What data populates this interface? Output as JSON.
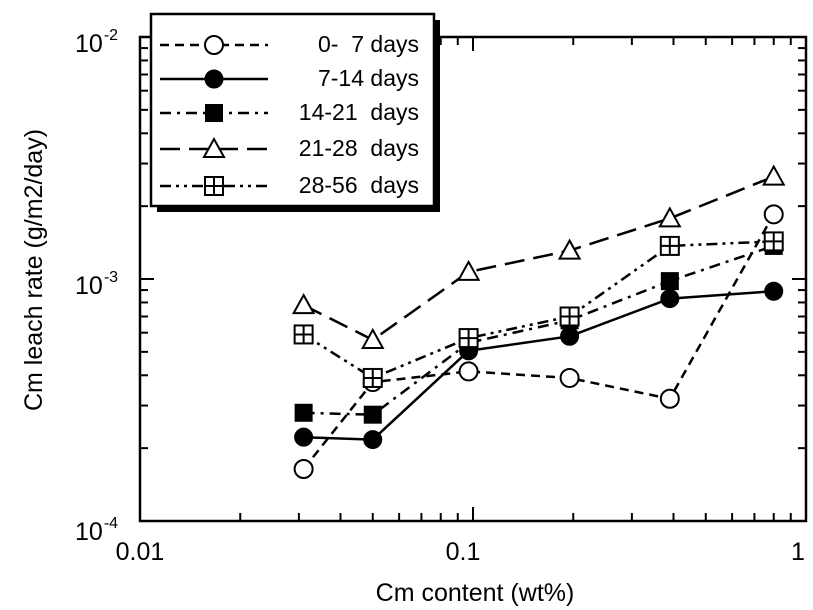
{
  "chart_data": {
    "type": "line",
    "xlabel": "Cm content (wt%)",
    "ylabel": "Cm leach rate (g/m2/day)",
    "xscale": "log",
    "yscale": "log",
    "xlim": [
      0.01,
      1
    ],
    "ylim": [
      0.0001,
      0.01
    ],
    "x_tick_labels": [
      "0.01",
      "0.1",
      "1"
    ],
    "y_tick_labels": [
      {
        "base": "10",
        "exp": "-4"
      },
      {
        "base": "10",
        "exp": "-3"
      },
      {
        "base": "10",
        "exp": "-2"
      }
    ],
    "legend_position": "top-left",
    "grid": false,
    "series": [
      {
        "name": "0-  7 days",
        "marker": "open-circle",
        "line": "short-dash",
        "x": [
          0.031,
          0.05,
          0.097,
          0.195,
          0.39,
          0.8
        ],
        "y": [
          0.000164,
          0.000375,
          0.000415,
          0.00039,
          0.00032,
          0.00185
        ]
      },
      {
        "name": "7-14 days",
        "marker": "filled-circle",
        "line": "solid",
        "x": [
          0.031,
          0.05,
          0.097,
          0.195,
          0.39,
          0.8
        ],
        "y": [
          0.000222,
          0.000217,
          0.000505,
          0.00058,
          0.00083,
          0.00089
        ]
      },
      {
        "name": "14-21  days",
        "marker": "filled-square",
        "line": "dash-dot",
        "x": [
          0.031,
          0.05,
          0.097,
          0.195,
          0.39,
          0.8
        ],
        "y": [
          0.00028,
          0.000275,
          0.000545,
          0.000675,
          0.00098,
          0.00137
        ]
      },
      {
        "name": "21-28  days",
        "marker": "open-triangle",
        "line": "long-dash",
        "x": [
          0.031,
          0.05,
          0.097,
          0.195,
          0.39,
          0.8
        ],
        "y": [
          0.00078,
          0.00056,
          0.00107,
          0.00131,
          0.00178,
          0.00265
        ]
      },
      {
        "name": "28-56  days",
        "marker": "crossed-square",
        "line": "dash-dot-dot",
        "x": [
          0.031,
          0.05,
          0.097,
          0.195,
          0.39,
          0.8
        ],
        "y": [
          0.00059,
          0.00039,
          0.00057,
          0.0007,
          0.00137,
          0.00143
        ]
      }
    ]
  }
}
